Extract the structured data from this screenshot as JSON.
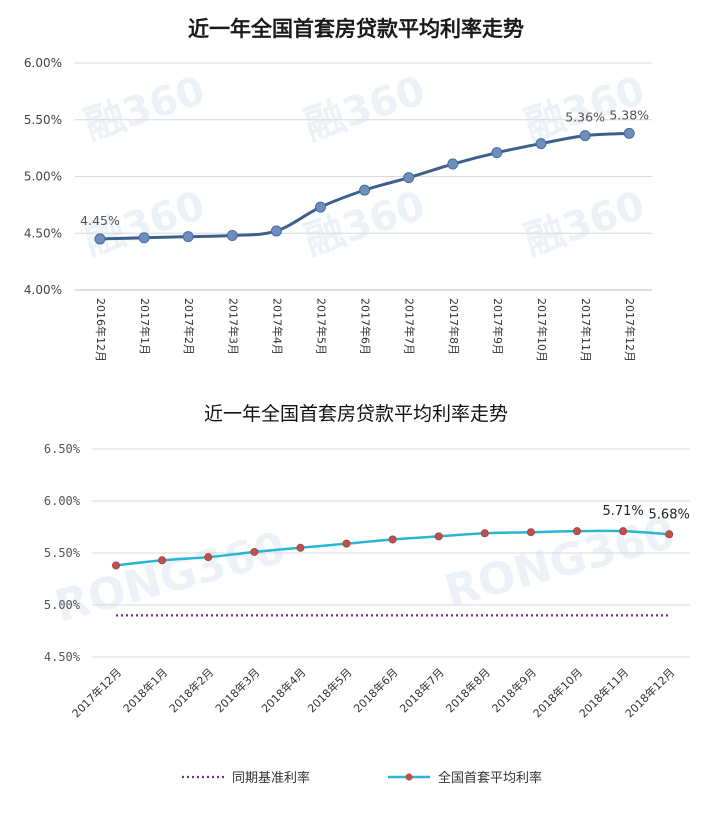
{
  "chart_data": [
    {
      "type": "line",
      "title": "近一年全国首套房贷款平均利率走势",
      "categories": [
        "2016年12月",
        "2017年1月",
        "2017年2月",
        "2017年3月",
        "2017年4月",
        "2017年5月",
        "2017年6月",
        "2017年7月",
        "2017年8月",
        "2017年9月",
        "2017年10月",
        "2017年11月",
        "2017年12月"
      ],
      "series": [
        {
          "values": [
            4.45,
            4.46,
            4.47,
            4.48,
            4.52,
            4.73,
            4.88,
            4.99,
            5.11,
            5.21,
            5.29,
            5.36,
            5.38
          ],
          "color": "#3d5f8c"
        }
      ],
      "ylim": [
        4.0,
        6.0
      ],
      "yticks": [
        "4.00%",
        "4.50%",
        "5.00%",
        "5.50%",
        "6.00%"
      ],
      "data_labels": [
        {
          "index": 0,
          "text": "4.45%"
        },
        {
          "index": 11,
          "text": "5.36%"
        },
        {
          "index": 12,
          "text": "5.38%"
        }
      ],
      "grid": true,
      "watermark": "融360"
    },
    {
      "type": "line",
      "title": "近一年全国首套房贷款平均利率走势",
      "categories": [
        "2017年12月",
        "2018年1月",
        "2018年2月",
        "2018年3月",
        "2018年4月",
        "2018年5月",
        "2018年6月",
        "2018年7月",
        "2018年8月",
        "2018年9月",
        "2018年10月",
        "2018年11月",
        "2018年12月"
      ],
      "series": [
        {
          "name": "同期基准利率",
          "values": [
            4.9,
            4.9,
            4.9,
            4.9,
            4.9,
            4.9,
            4.9,
            4.9,
            4.9,
            4.9,
            4.9,
            4.9,
            4.9
          ],
          "color": "#7b2d8e",
          "style": "dotted"
        },
        {
          "name": "全国首套平均利率",
          "values": [
            5.38,
            5.43,
            5.46,
            5.51,
            5.55,
            5.59,
            5.63,
            5.66,
            5.69,
            5.7,
            5.71,
            5.71,
            5.68
          ],
          "color": "#29b5d4",
          "marker_color": "#c0504d"
        }
      ],
      "ylim": [
        4.5,
        6.5
      ],
      "yticks": [
        "4.50%",
        "5.00%",
        "5.50%",
        "6.00%",
        "6.50%"
      ],
      "data_labels": [
        {
          "series": 1,
          "index": 11,
          "text": "5.71%"
        },
        {
          "series": 1,
          "index": 12,
          "text": "5.68%"
        }
      ],
      "grid": true,
      "legend": "bottom",
      "watermark": "RONG360"
    }
  ]
}
